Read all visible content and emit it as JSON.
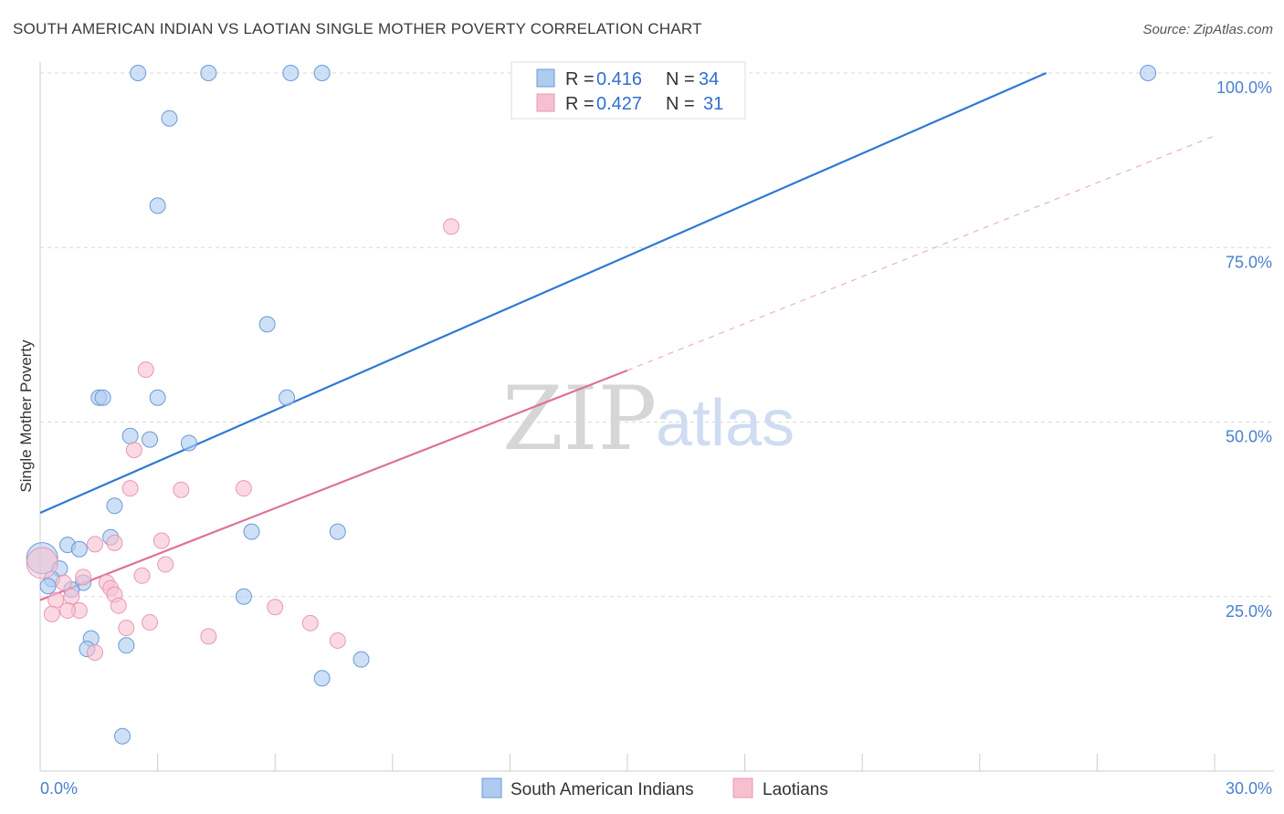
{
  "title": "SOUTH AMERICAN INDIAN VS LAOTIAN SINGLE MOTHER POVERTY CORRELATION CHART",
  "source": "Source: ZipAtlas.com",
  "watermark": {
    "zip": "ZIP",
    "atlas": "atlas"
  },
  "legend": {
    "rows": [
      {
        "r_label": "R =",
        "r_value": "0.416",
        "n_label": "N =",
        "n_value": "34"
      },
      {
        "r_label": "R =",
        "r_value": "0.427",
        "n_label": "N =",
        "n_value": "31"
      }
    ]
  },
  "colors": {
    "blue_fill": "#aecbf0",
    "blue_stroke": "#6a9ad8",
    "blue_line": "#2f78d4",
    "pink_fill": "#f6c0d0",
    "pink_stroke": "#e898b2",
    "pink_line": "#e0709a",
    "grid": "#d9d9d9",
    "axis_label": "#4a7fd0"
  },
  "chart_data": {
    "type": "scatter",
    "title": "SOUTH AMERICAN INDIAN VS LAOTIAN SINGLE MOTHER POVERTY CORRELATION CHART",
    "xlabel": "",
    "ylabel": "Single Mother Poverty",
    "xlim": [
      0,
      30
    ],
    "ylim": [
      0,
      100
    ],
    "x_tick_labels": [
      "0.0%",
      "30.0%"
    ],
    "y_ticks": [
      25,
      50,
      75,
      100
    ],
    "y_tick_labels": [
      "25.0%",
      "50.0%",
      "75.0%",
      "100.0%"
    ],
    "grid": true,
    "series": [
      {
        "name": "South American Indians",
        "color": "#aecbf0",
        "points": [
          [
            2.5,
            100
          ],
          [
            4.3,
            100
          ],
          [
            6.4,
            100
          ],
          [
            7.2,
            100
          ],
          [
            28.3,
            100
          ],
          [
            3.3,
            93.5
          ],
          [
            3.0,
            81
          ],
          [
            5.8,
            64
          ],
          [
            1.5,
            53.5
          ],
          [
            1.6,
            53.5
          ],
          [
            3.0,
            53.5
          ],
          [
            6.3,
            53.5
          ],
          [
            2.3,
            48
          ],
          [
            2.8,
            47.5
          ],
          [
            3.8,
            47
          ],
          [
            1.9,
            38
          ],
          [
            1.8,
            33.5
          ],
          [
            5.4,
            34.3
          ],
          [
            7.6,
            34.3
          ],
          [
            0.7,
            32.4
          ],
          [
            1.0,
            31.8
          ],
          [
            0.5,
            29
          ],
          [
            0.3,
            27.5
          ],
          [
            1.1,
            27
          ],
          [
            0.2,
            26.5
          ],
          [
            0.8,
            26
          ],
          [
            5.2,
            25
          ],
          [
            1.3,
            19
          ],
          [
            1.2,
            17.5
          ],
          [
            2.2,
            18
          ],
          [
            8.2,
            16
          ],
          [
            7.2,
            13.3
          ],
          [
            2.1,
            5
          ]
        ],
        "big_points": [
          [
            0.05,
            30.5
          ]
        ],
        "trend": {
          "x0": 0,
          "y0": 37,
          "x1": 25.7,
          "y1": 100
        }
      },
      {
        "name": "Laotians",
        "color": "#f6c0d0",
        "points": [
          [
            10.5,
            78
          ],
          [
            2.7,
            57.5
          ],
          [
            2.4,
            46
          ],
          [
            2.3,
            40.5
          ],
          [
            3.6,
            40.3
          ],
          [
            5.2,
            40.5
          ],
          [
            3.1,
            33
          ],
          [
            1.4,
            32.5
          ],
          [
            1.9,
            32.7
          ],
          [
            3.2,
            29.6
          ],
          [
            2.6,
            28
          ],
          [
            1.1,
            27.8
          ],
          [
            0.6,
            27
          ],
          [
            1.7,
            27
          ],
          [
            1.8,
            26.2
          ],
          [
            0.8,
            25
          ],
          [
            1.9,
            25.3
          ],
          [
            0.4,
            24.5
          ],
          [
            2.0,
            23.7
          ],
          [
            6.0,
            23.5
          ],
          [
            1.0,
            23
          ],
          [
            0.7,
            23
          ],
          [
            0.3,
            22.5
          ],
          [
            2.8,
            21.3
          ],
          [
            2.2,
            20.5
          ],
          [
            6.9,
            21.2
          ],
          [
            4.3,
            19.3
          ],
          [
            7.6,
            18.7
          ],
          [
            1.4,
            17
          ]
        ],
        "big_points": [
          [
            0.05,
            29.8
          ]
        ],
        "trend": {
          "x0": 0,
          "y0": 24.5,
          "x1": 15,
          "y1": 57.4
        },
        "trend_dashed": {
          "x0": 15,
          "y0": 57.4,
          "x1": 30,
          "y1": 91
        }
      }
    ]
  }
}
